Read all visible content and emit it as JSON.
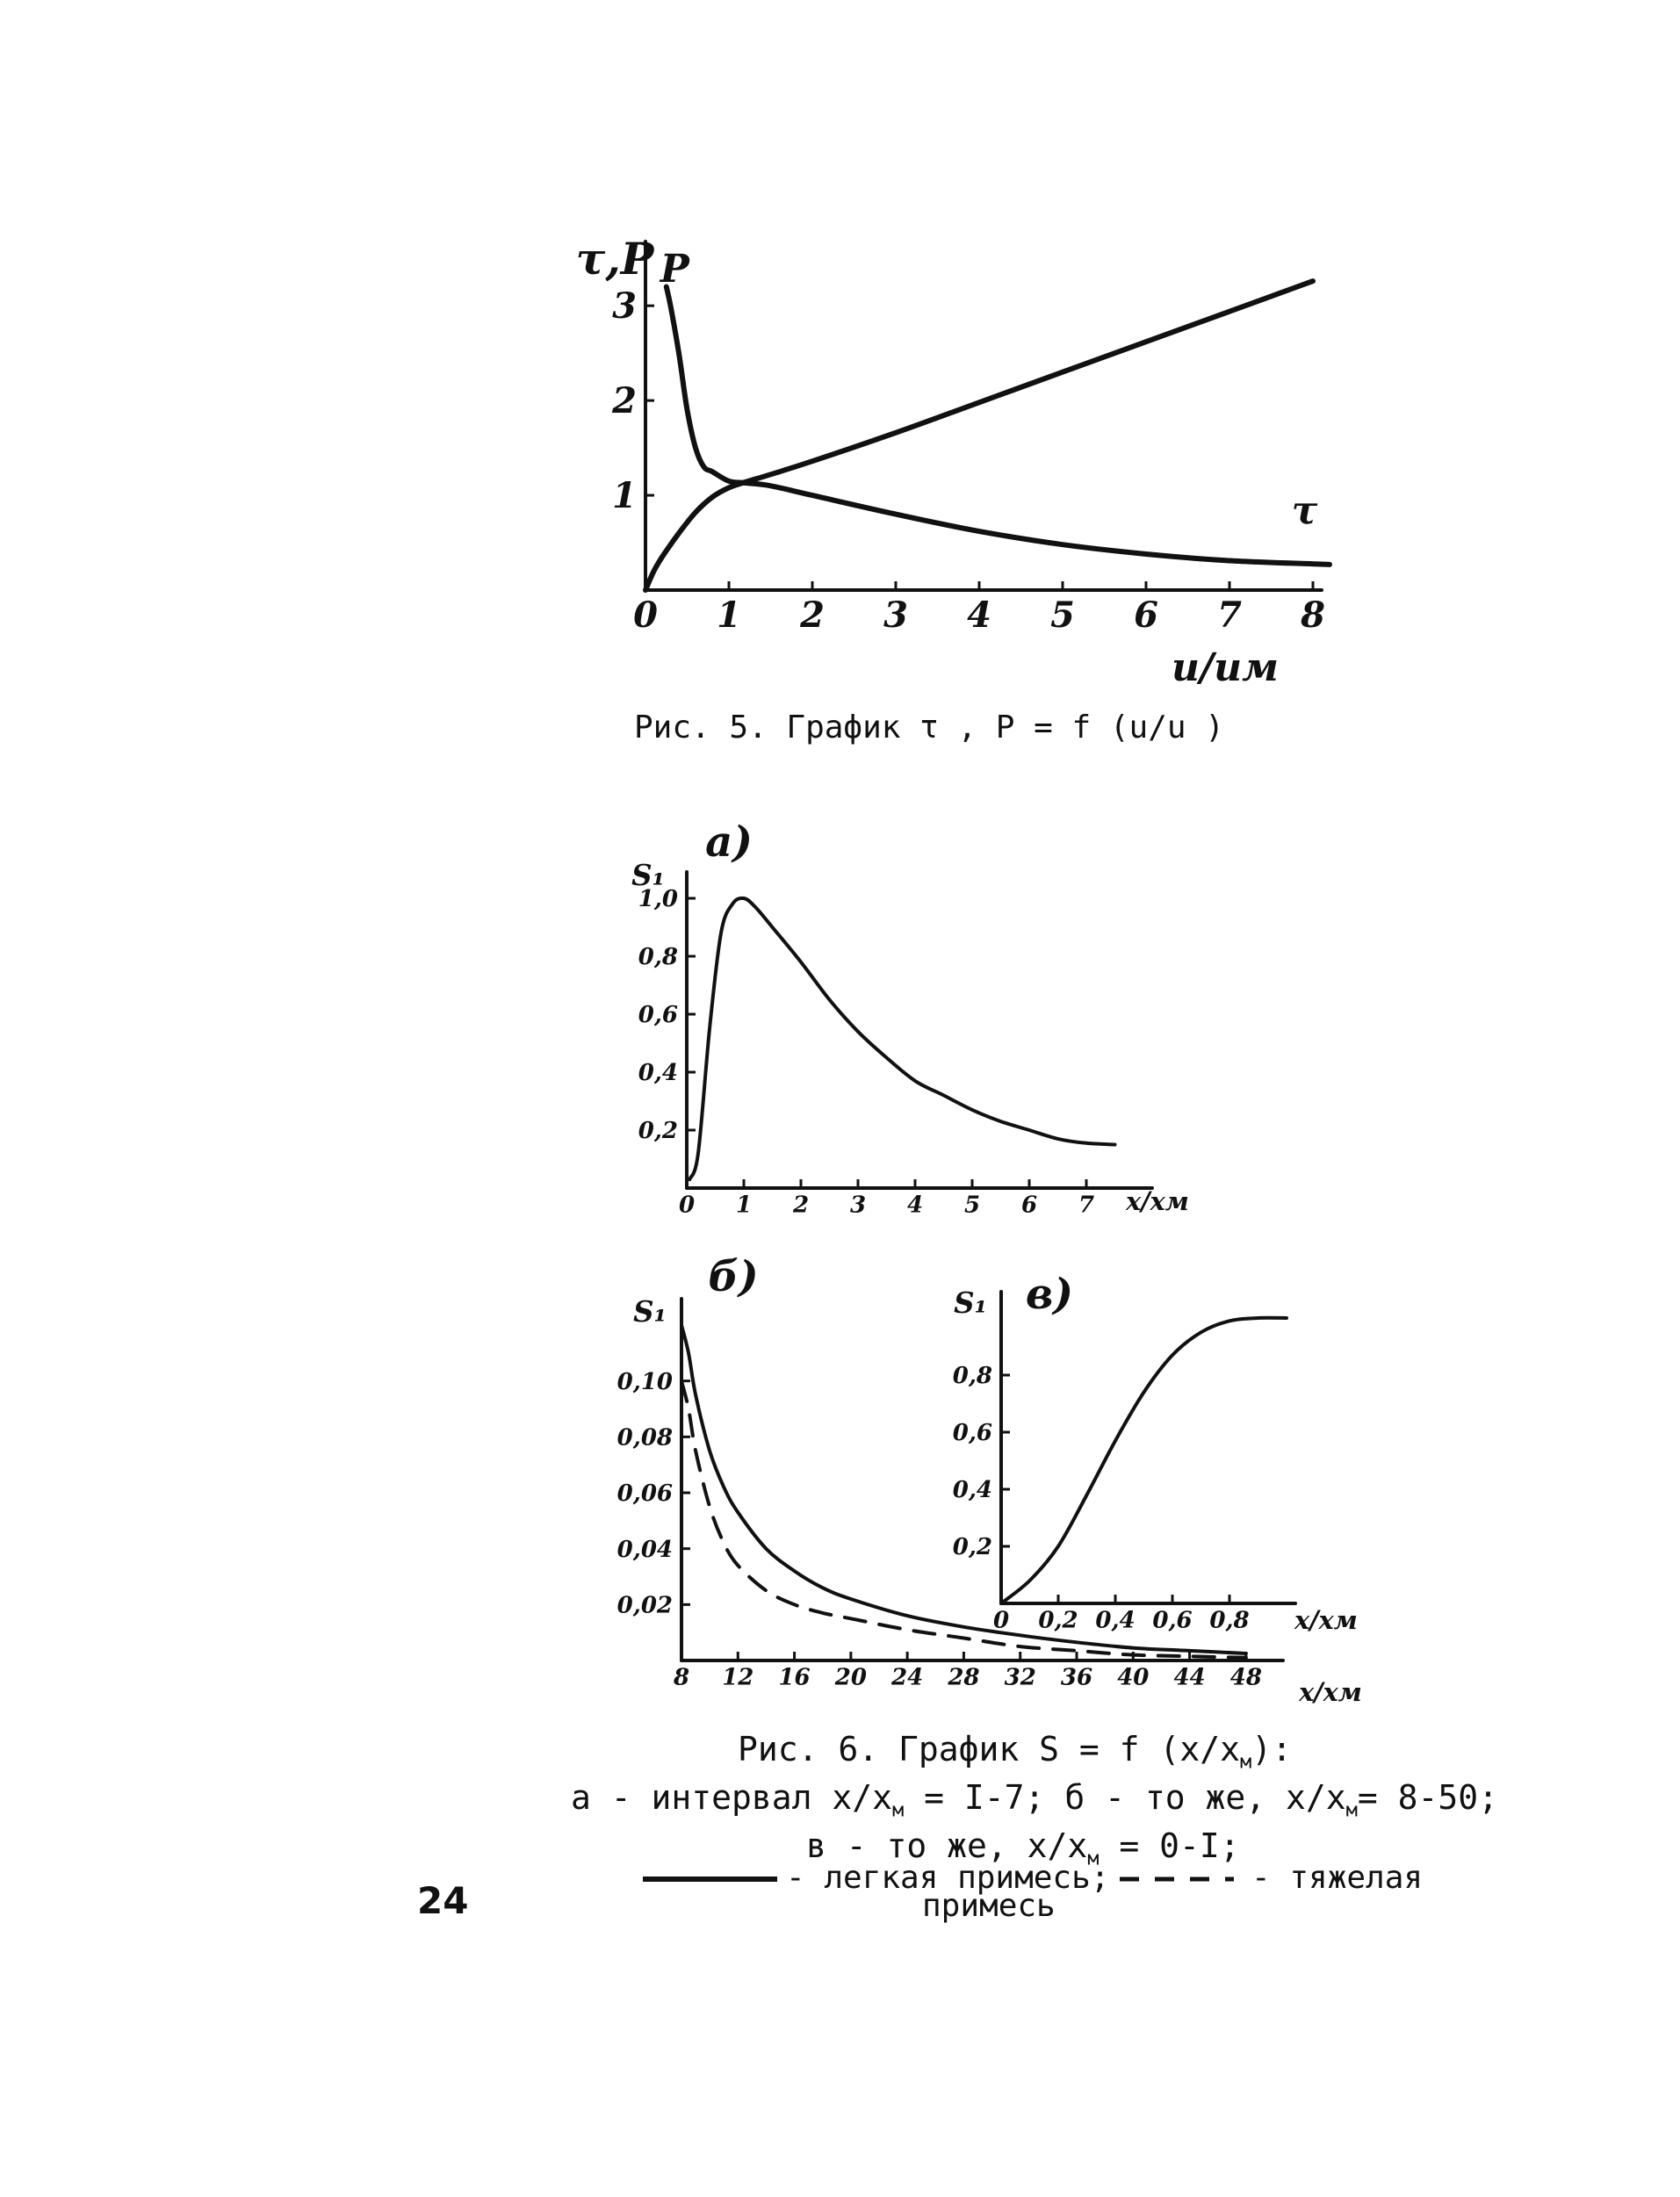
{
  "page_number": "24",
  "fig5": {
    "caption": "Рис. 5. График τ , P = f (u/u )"
  },
  "fig6": {
    "caption_line1": "Рис. 6. График S = f (x/x",
    "caption_line1_sub": "м",
    "caption_line1_end": "):",
    "caption_line2": "а - интервал x/x",
    "caption_line2_sub": "м",
    "caption_line2_end": " = I-7; б - то же, x/x",
    "caption_line2_sub2": "м",
    "caption_line2_end2": "= 8-50;",
    "caption_line3": "в - то же, x/x",
    "caption_line3_sub": "м",
    "caption_line3_end": " = 0-I;",
    "legend_solid": "- легкая примесь;",
    "legend_dashed": "- тяжелая",
    "legend_dashed_2": "примесь"
  },
  "chart_data": [
    {
      "id": "fig5",
      "type": "line",
      "ylabel": "τ,P",
      "xlabel": "u/uм",
      "xlim": [
        0,
        8
      ],
      "ylim": [
        0,
        3.4
      ],
      "x_ticks": [
        "0",
        "1",
        "2",
        "3",
        "4",
        "5",
        "6",
        "7",
        "8"
      ],
      "y_ticks": [
        "1",
        "2",
        "3"
      ],
      "grid": false,
      "series": [
        {
          "name": "P",
          "x": [
            0.25,
            0.3,
            0.4,
            0.5,
            0.6,
            0.7,
            0.8,
            1.0,
            1.2,
            1.5,
            2,
            3,
            4,
            5,
            6,
            7,
            8.2
          ],
          "y": [
            3.2,
            3.0,
            2.5,
            1.9,
            1.5,
            1.3,
            1.25,
            1.15,
            1.13,
            1.1,
            1.0,
            0.8,
            0.62,
            0.48,
            0.38,
            0.31,
            0.27
          ],
          "label_at": [
            0.35,
            3.25
          ]
        },
        {
          "name": "τ",
          "x": [
            0,
            0.1,
            0.2,
            0.4,
            0.6,
            0.8,
            1.0,
            1.2,
            1.5,
            2,
            3,
            4,
            5,
            6,
            7,
            8
          ],
          "y": [
            0,
            0.2,
            0.35,
            0.6,
            0.82,
            0.98,
            1.08,
            1.14,
            1.22,
            1.36,
            1.66,
            1.98,
            2.3,
            2.62,
            2.94,
            3.26
          ],
          "label_at": [
            7.9,
            0.7
          ]
        }
      ]
    },
    {
      "id": "fig6a",
      "type": "line",
      "panel_label": "а)",
      "ylabel": "S₁",
      "xlabel": "x/xм",
      "xlim": [
        0,
        8
      ],
      "ylim": [
        0,
        1.0
      ],
      "x_ticks": [
        "0",
        "1",
        "2",
        "3",
        "4",
        "5",
        "6",
        "7"
      ],
      "y_ticks": [
        "0,2",
        "0,4",
        "0,6",
        "0,8",
        "1,0"
      ],
      "series": [
        {
          "name": "легкая примесь",
          "style": "solid",
          "x": [
            0.05,
            0.2,
            0.4,
            0.6,
            0.8,
            1.0,
            1.2,
            1.5,
            2,
            2.5,
            3,
            3.5,
            4,
            4.5,
            5,
            5.5,
            6,
            6.5,
            7,
            7.5
          ],
          "y": [
            0.03,
            0.12,
            0.55,
            0.88,
            0.98,
            1.0,
            0.97,
            0.9,
            0.78,
            0.65,
            0.54,
            0.45,
            0.37,
            0.32,
            0.27,
            0.23,
            0.2,
            0.17,
            0.155,
            0.15
          ]
        }
      ]
    },
    {
      "id": "fig6b",
      "type": "line",
      "panel_label": "б)",
      "ylabel": "S₁",
      "xlabel": "x/xм",
      "xlim": [
        8,
        50
      ],
      "ylim": [
        0,
        0.12
      ],
      "x_ticks": [
        "8",
        "12",
        "16",
        "20",
        "24",
        "28",
        "32",
        "36",
        "40",
        "44",
        "48"
      ],
      "y_ticks": [
        "0,02",
        "0,04",
        "0,06",
        "0,08",
        "0,10"
      ],
      "series": [
        {
          "name": "легкая примесь",
          "style": "solid",
          "x": [
            8,
            8.5,
            9,
            10,
            11,
            12,
            14,
            16,
            18,
            20,
            24,
            28,
            32,
            36,
            40,
            44,
            48
          ],
          "y": [
            0.12,
            0.11,
            0.095,
            0.075,
            0.062,
            0.053,
            0.04,
            0.032,
            0.026,
            0.022,
            0.016,
            0.012,
            0.009,
            0.0065,
            0.0045,
            0.0035,
            0.0025
          ]
        },
        {
          "name": "тяжелая примесь",
          "style": "dashed",
          "x": [
            8,
            8.5,
            9,
            10,
            11,
            12,
            14,
            16,
            18,
            20,
            24,
            28,
            32,
            36,
            40,
            44,
            48
          ],
          "y": [
            0.1,
            0.09,
            0.075,
            0.055,
            0.042,
            0.034,
            0.025,
            0.02,
            0.017,
            0.015,
            0.011,
            0.008,
            0.005,
            0.0035,
            0.002,
            0.0015,
            0.001
          ]
        }
      ]
    },
    {
      "id": "fig6c",
      "type": "line",
      "panel_label": "в)",
      "ylabel": "S₁",
      "xlabel": "x/xм",
      "xlim": [
        0,
        1.0
      ],
      "ylim": [
        0,
        1.0
      ],
      "x_ticks": [
        "0",
        "0,2",
        "0,4",
        "0,6",
        "0,8"
      ],
      "y_ticks": [
        "0,2",
        "0,4",
        "0,6",
        "0,8"
      ],
      "series": [
        {
          "name": "легкая примесь",
          "style": "solid",
          "x": [
            0,
            0.1,
            0.2,
            0.3,
            0.4,
            0.5,
            0.6,
            0.7,
            0.8,
            0.9,
            1.0
          ],
          "y": [
            0,
            0.08,
            0.2,
            0.38,
            0.57,
            0.74,
            0.87,
            0.95,
            0.99,
            1.0,
            1.0
          ]
        }
      ]
    }
  ]
}
